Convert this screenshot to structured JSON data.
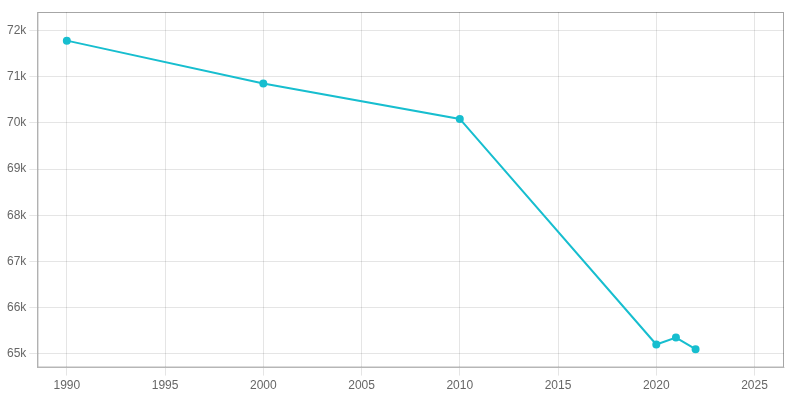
{
  "chart_data": {
    "type": "line",
    "x": [
      1990,
      2000,
      2010,
      2020,
      2021,
      2022
    ],
    "values": [
      71780,
      70850,
      70085,
      65200,
      65350,
      65100
    ],
    "color": "#17becf",
    "marker": "circle",
    "xlim": [
      1988.5,
      2026.5
    ],
    "xticks": [
      1990,
      1995,
      2000,
      2005,
      2010,
      2015,
      2020,
      2025
    ],
    "ylim": [
      64700,
      72400
    ],
    "yticks": [
      {
        "value": 65000,
        "label": "65k"
      },
      {
        "value": 66000,
        "label": "66k"
      },
      {
        "value": 67000,
        "label": "67k"
      },
      {
        "value": 68000,
        "label": "68k"
      },
      {
        "value": 69000,
        "label": "69k"
      },
      {
        "value": 70000,
        "label": "70k"
      },
      {
        "value": 71000,
        "label": "71k"
      },
      {
        "value": 72000,
        "label": "72k"
      }
    ],
    "grid": true
  }
}
